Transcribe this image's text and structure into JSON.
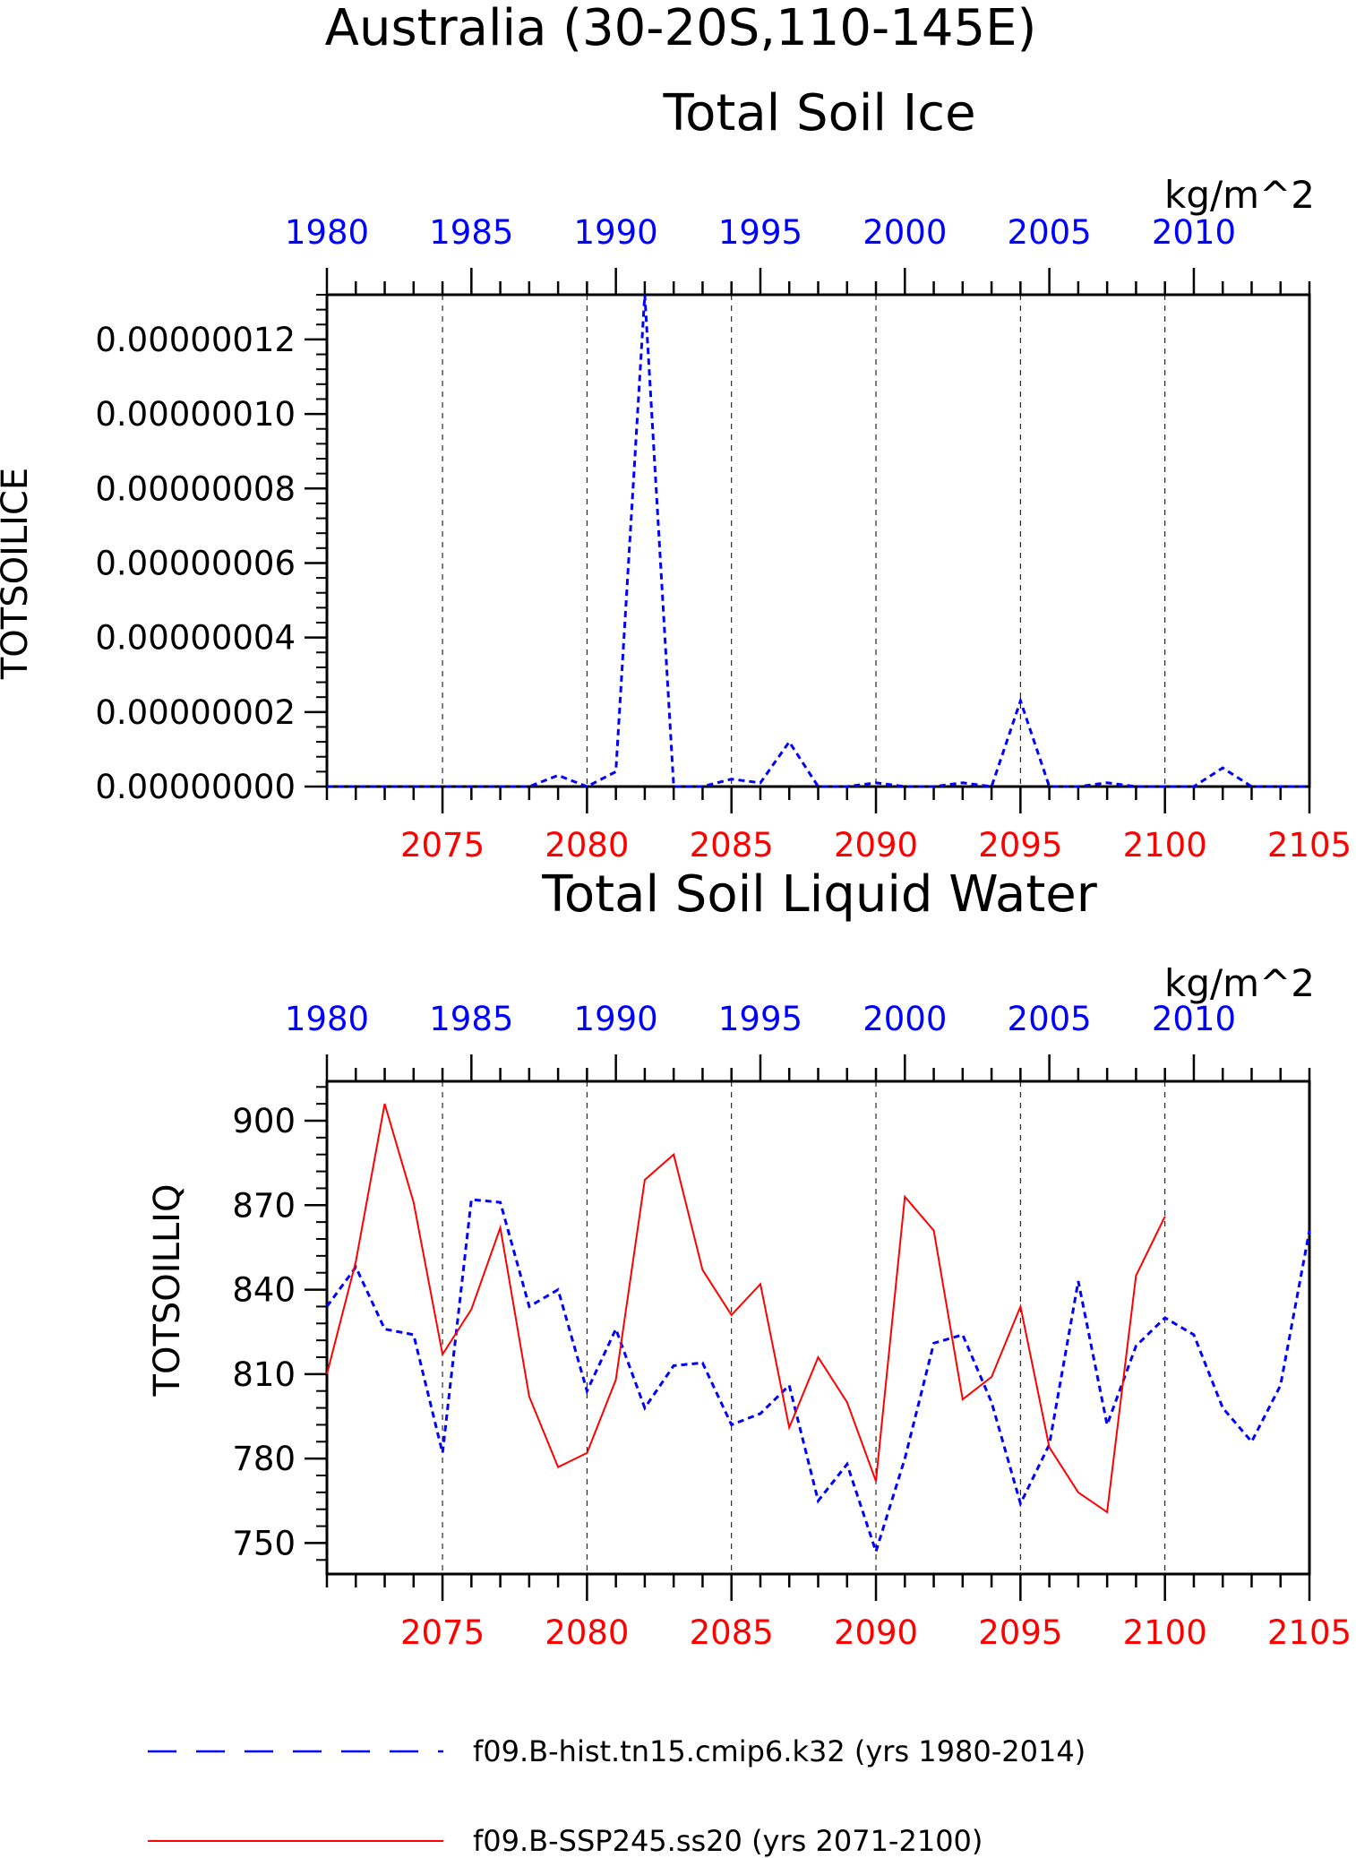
{
  "title": "Australia (30-20S,110-145E)",
  "colors": {
    "hist": "#0000ff",
    "ssp": "#ff0000",
    "axis": "#000000"
  },
  "legend": [
    {
      "label": "f09.B-hist.tn15.cmip6.k32 (yrs 1980-2014)",
      "color": "#0000ff",
      "style": "dashed"
    },
    {
      "label": "f09.B-SSP245.ss20 (yrs 2071-2100)",
      "color": "#ff0000",
      "style": "solid"
    }
  ],
  "chart_data": [
    {
      "type": "line",
      "title": "Total Soil Ice",
      "units": "kg/m^2",
      "ylabel": "TOTSOILICE",
      "ylim": [
        0,
        1.32e-07
      ],
      "yticks": [
        "0.00000000",
        "0.00000002",
        "0.00000004",
        "0.00000006",
        "0.00000008",
        "0.00000010",
        "0.00000012"
      ],
      "ytick_values": [
        0,
        2e-08,
        4e-08,
        6e-08,
        8e-08,
        1e-07,
        1.2e-07
      ],
      "x_top": {
        "ticks": [
          "1980",
          "1985",
          "1990",
          "1995",
          "2000",
          "2005",
          "2010"
        ],
        "range": [
          1980,
          2014
        ]
      },
      "x_bottom": {
        "ticks": [
          "2075",
          "2080",
          "2085",
          "2090",
          "2095",
          "2100",
          "2105"
        ],
        "range": [
          2071,
          2105
        ]
      },
      "grid": "vertical dashed at major ticks",
      "series": [
        {
          "name": "f09.B-hist.tn15.cmip6.k32 (yrs 1980-2014)",
          "axis": "top",
          "style": "dashed",
          "x": [
            1980,
            1981,
            1982,
            1983,
            1984,
            1985,
            1986,
            1987,
            1988,
            1989,
            1990,
            1991,
            1992,
            1993,
            1994,
            1995,
            1996,
            1997,
            1998,
            1999,
            2000,
            2001,
            2002,
            2003,
            2004,
            2005,
            2006,
            2007,
            2008,
            2009,
            2010,
            2011,
            2012,
            2013,
            2014
          ],
          "values": [
            0,
            0,
            0,
            0,
            0,
            0,
            0,
            0,
            3e-09,
            0,
            4e-09,
            1.32e-07,
            0,
            0,
            2e-09,
            1e-09,
            1.2e-08,
            0,
            0,
            1e-09,
            0,
            0,
            1e-09,
            0,
            2.3e-08,
            0,
            0,
            1e-09,
            0,
            0,
            0,
            5e-09,
            0,
            0,
            0
          ]
        }
      ]
    },
    {
      "type": "line",
      "title": "Total Soil Liquid Water",
      "units": "kg/m^2",
      "ylabel": "TOTSOILLIQ",
      "ylim": [
        739,
        914
      ],
      "yticks": [
        "750",
        "780",
        "810",
        "840",
        "870",
        "900"
      ],
      "ytick_values": [
        750,
        780,
        810,
        840,
        870,
        900
      ],
      "x_top": {
        "ticks": [
          "1980",
          "1985",
          "1990",
          "1995",
          "2000",
          "2005",
          "2010"
        ],
        "range": [
          1980,
          2014
        ]
      },
      "x_bottom": {
        "ticks": [
          "2075",
          "2080",
          "2085",
          "2090",
          "2095",
          "2100",
          "2105"
        ],
        "range": [
          2071,
          2105
        ]
      },
      "grid": "vertical dashed at major ticks",
      "series": [
        {
          "name": "f09.B-hist.tn15.cmip6.k32 (yrs 1980-2014)",
          "axis": "top",
          "style": "dashed",
          "x": [
            1980,
            1981,
            1982,
            1983,
            1984,
            1985,
            1986,
            1987,
            1988,
            1989,
            1990,
            1991,
            1992,
            1993,
            1994,
            1995,
            1996,
            1997,
            1998,
            1999,
            2000,
            2001,
            2002,
            2003,
            2004,
            2005,
            2006,
            2007,
            2008,
            2009,
            2010,
            2011,
            2012,
            2013,
            2014
          ],
          "values": [
            834,
            848,
            826,
            824,
            782,
            872,
            871,
            834,
            840,
            804,
            826,
            798,
            813,
            814,
            792,
            796,
            806,
            765,
            778,
            747,
            780,
            821,
            824,
            800,
            764,
            785,
            843,
            792,
            820,
            830,
            824,
            798,
            786,
            806,
            861
          ]
        },
        {
          "name": "f09.B-SSP245.ss20 (yrs 2071-2100)",
          "axis": "bottom",
          "style": "solid",
          "x": [
            2071,
            2072,
            2073,
            2074,
            2075,
            2076,
            2077,
            2078,
            2079,
            2080,
            2081,
            2082,
            2083,
            2084,
            2085,
            2086,
            2087,
            2088,
            2089,
            2090,
            2091,
            2092,
            2093,
            2094,
            2095,
            2096,
            2097,
            2098,
            2099,
            2100
          ],
          "values": [
            810,
            850,
            906,
            871,
            817,
            833,
            862,
            802,
            777,
            782,
            808,
            879,
            888,
            847,
            831,
            842,
            791,
            816,
            800,
            772,
            873,
            861,
            801,
            809,
            834,
            784,
            768,
            761,
            845,
            866
          ]
        }
      ]
    }
  ]
}
